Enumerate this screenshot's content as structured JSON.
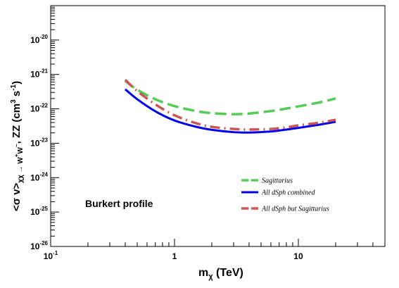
{
  "chart_data": {
    "type": "line",
    "xlabel_main": "m",
    "xlabel_sub": "χ",
    "xlabel_unit": " (TeV)",
    "ylabel_parts": {
      "open": "<σ v>",
      "sub": "χχ → W",
      "w_sup1": "+",
      "w2": "W",
      "w_sup2": "−",
      "rest": ", ZZ (cm",
      "cm_exp": "3",
      "s": " s",
      "s_exp": "-1",
      "close": ")"
    },
    "x_scale": "log",
    "y_scale": "log",
    "xlim": [
      0.1,
      50
    ],
    "ylim": [
      1e-26,
      1e-19
    ],
    "x_ticks": [
      {
        "value": 0.1,
        "base": "10",
        "exp": "-1"
      },
      {
        "value": 1,
        "base": "1",
        "exp": ""
      },
      {
        "value": 10,
        "base": "10",
        "exp": ""
      }
    ],
    "y_ticks": [
      {
        "value": 1e-26,
        "base": "10",
        "exp": "-26"
      },
      {
        "value": 1e-25,
        "base": "10",
        "exp": "-25"
      },
      {
        "value": 1e-24,
        "base": "10",
        "exp": "-24"
      },
      {
        "value": 1e-23,
        "base": "10",
        "exp": "-23"
      },
      {
        "value": 1e-22,
        "base": "10",
        "exp": "-22"
      },
      {
        "value": 1e-21,
        "base": "10",
        "exp": "-21"
      },
      {
        "value": 1e-20,
        "base": "10",
        "exp": "-20"
      }
    ],
    "annotation": "Burkert profile",
    "legend_position": "bottom-right",
    "grid": false,
    "series": [
      {
        "name": "Sagittarius",
        "color": "#55cc55",
        "style": "long-dash",
        "x": [
          0.4,
          0.5,
          0.7,
          1.0,
          1.5,
          2.0,
          3.0,
          4.0,
          6.0,
          8.0,
          10.0,
          15.0,
          20.0
        ],
        "y": [
          6.5e-22,
          3.6e-22,
          1.9e-22,
          1.2e-22,
          8.6e-23,
          7.5e-23,
          7e-23,
          7.3e-23,
          8.6e-23,
          1.02e-22,
          1.18e-22,
          1.55e-22,
          2e-22
        ]
      },
      {
        "name": "All dSph combined",
        "color": "#0000ee",
        "style": "solid",
        "x": [
          0.4,
          0.5,
          0.7,
          1.0,
          1.5,
          2.0,
          3.0,
          4.0,
          6.0,
          8.0,
          10.0,
          15.0,
          20.0
        ],
        "y": [
          3.7e-22,
          1.9e-22,
          8.5e-23,
          4.6e-23,
          3e-23,
          2.45e-23,
          2.1e-23,
          2.05e-23,
          2.2e-23,
          2.5e-23,
          2.8e-23,
          3.5e-23,
          4.2e-23
        ]
      },
      {
        "name": "All dSph but Sagittarius",
        "color": "#cc5555",
        "style": "dash",
        "x": [
          0.4,
          0.5,
          0.7,
          1.0,
          1.5,
          2.0,
          3.0,
          4.0,
          6.0,
          8.0,
          10.0,
          15.0,
          20.0
        ],
        "y": [
          7e-22,
          3.3e-22,
          1.35e-22,
          6.5e-23,
          3.8e-23,
          3e-23,
          2.6e-23,
          2.5e-23,
          2.6e-23,
          2.9e-23,
          3.3e-23,
          4e-23,
          4.8e-23
        ]
      }
    ]
  }
}
